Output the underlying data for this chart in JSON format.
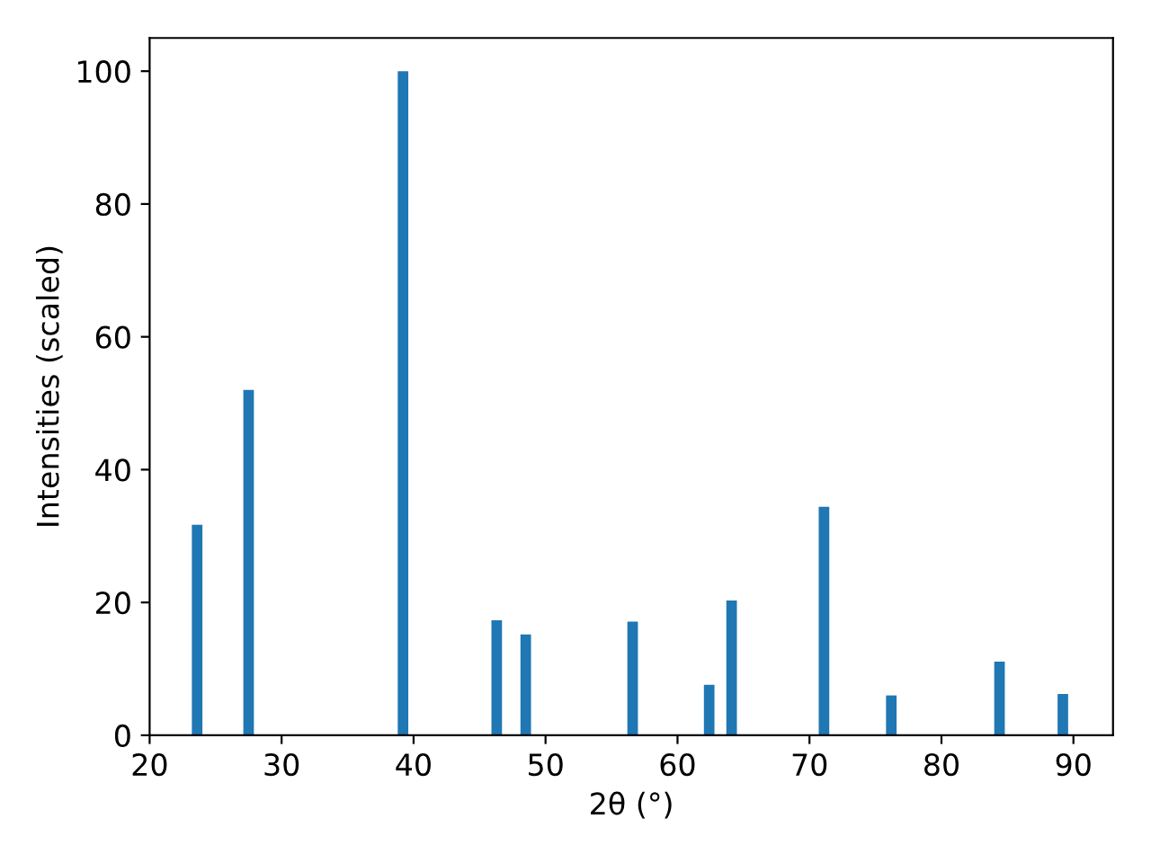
{
  "chart_data": {
    "type": "bar",
    "xlabel": "2θ (°)",
    "ylabel": "Intensities (scaled)",
    "x": [
      23.6,
      27.5,
      39.2,
      46.3,
      48.5,
      56.6,
      62.4,
      64.1,
      71.1,
      76.2,
      84.4,
      89.2
    ],
    "series": [
      {
        "color": "#1f77b4",
        "values": [
          31.7,
          52,
          100,
          17.3,
          15.2,
          17.1,
          7.6,
          20.3,
          34.4,
          6.0,
          11.1,
          6.2
        ]
      }
    ],
    "xlim": [
      20,
      93
    ],
    "xticks": [
      20,
      30,
      40,
      50,
      60,
      70,
      80,
      90
    ],
    "ylim": [
      0,
      105
    ],
    "yticks": [
      0,
      20,
      40,
      60,
      80,
      100
    ],
    "grid": false,
    "legend": false
  }
}
